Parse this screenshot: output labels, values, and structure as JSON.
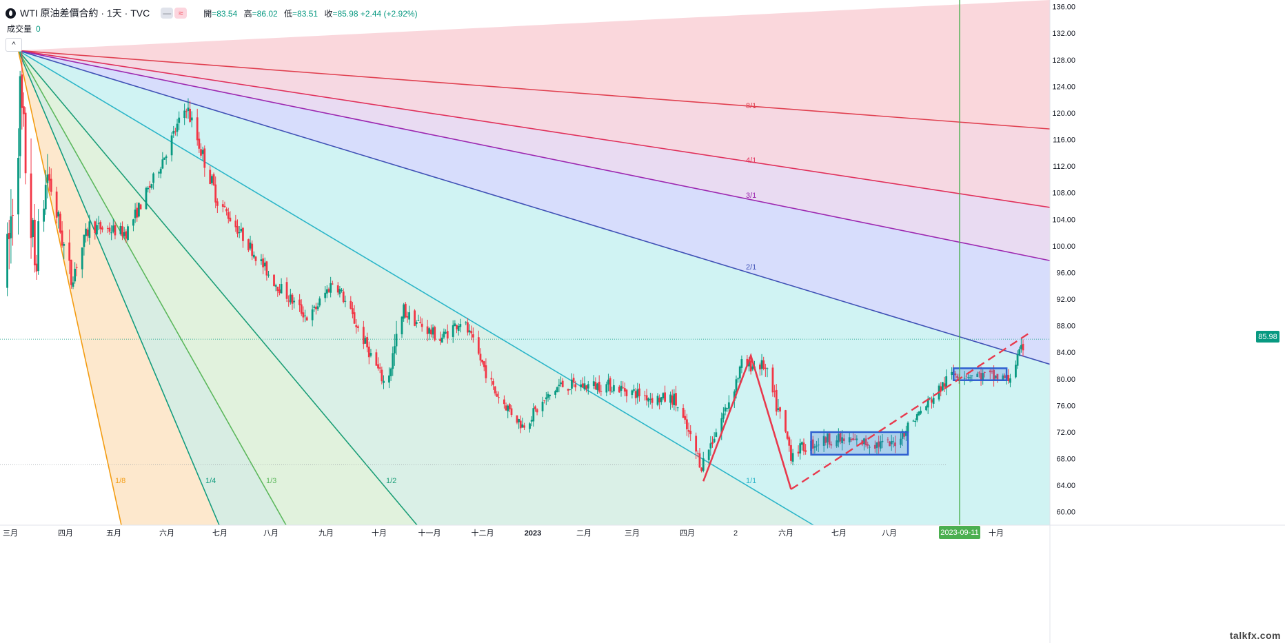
{
  "header": {
    "symbol_title": "WTI 原油差價合約 · 1天 · TVC",
    "badge_1": "—",
    "badge_2": "≈",
    "open_label": "開",
    "open_value": "=83.54",
    "high_label": "高",
    "high_value": "=86.02",
    "low_label": "低",
    "low_value": "=83.51",
    "close_label": "收",
    "close_value": "=85.98",
    "change": "+2.44 (+2.92%)"
  },
  "volume": {
    "label": "成交量",
    "value": "0"
  },
  "collapse_button": "^",
  "price_badge": "85.98",
  "date_badge": "2023-09-11",
  "watermark": "talkfx.com",
  "colors": {
    "up": "#089981",
    "down": "#f23645",
    "current_line": "#4caf50"
  },
  "chart_data": {
    "type": "candlestick",
    "title": "WTI 原油差價合約 · 1天 · TVC",
    "timeframe": "1天",
    "ylim": [
      58,
      137
    ],
    "y_ticks": [
      "60.00",
      "64.00",
      "68.00",
      "72.00",
      "76.00",
      "80.00",
      "84.00",
      "88.00",
      "92.00",
      "96.00",
      "100.00",
      "104.00",
      "108.00",
      "112.00",
      "116.00",
      "120.00",
      "124.00",
      "128.00",
      "132.00",
      "136.00"
    ],
    "x_ticks": [
      "三月",
      "四月",
      "五月",
      "六月",
      "七月",
      "八月",
      "九月",
      "十月",
      "十一月",
      "十二月",
      "2023",
      "二月",
      "三月",
      "四月",
      "2",
      "六月",
      "七月",
      "八月",
      "十月"
    ],
    "last_price": 85.98,
    "reference_price": 67.1,
    "ohlc_last": {
      "open": 83.54,
      "high": 86.02,
      "low": 83.51,
      "close": 85.98,
      "change": 2.44,
      "change_pct": 2.92
    },
    "gann_fan": {
      "origin": {
        "date": "2022-03-07",
        "price": 129.4
      },
      "angles": [
        {
          "label": "8/1",
          "color": "#e04050"
        },
        {
          "label": "4/1",
          "color": "#e0305a"
        },
        {
          "label": "3/1",
          "color": "#9c27b0"
        },
        {
          "label": "2/1",
          "color": "#3f51b5"
        },
        {
          "label": "1/1",
          "color": "#2bb5c8"
        },
        {
          "label": "1/2",
          "color": "#1b9e77"
        },
        {
          "label": "1/3",
          "color": "#5cb85c"
        },
        {
          "label": "1/4",
          "color": "#139c7e"
        },
        {
          "label": "1/8",
          "color": "#f39c12"
        }
      ]
    },
    "annotations": {
      "zigzag": [
        {
          "date": "2023-03-17",
          "price": 64.6
        },
        {
          "date": "2023-04-12",
          "price": 83.5
        },
        {
          "date": "2023-05-04",
          "price": 63.4
        }
      ],
      "boxes": [
        {
          "from": "2023-05-15",
          "to": "2023-07-07",
          "top": 72.0,
          "bottom": 68.6
        },
        {
          "from": "2023-08-01",
          "to": "2023-08-30",
          "top": 81.6,
          "bottom": 79.8
        }
      ],
      "trend_line": [
        {
          "date": "2023-05-04",
          "price": 63.4
        },
        {
          "date": "2023-09-12",
          "price": 87.0
        }
      ],
      "current_date": "2023-09-11"
    },
    "segments": [
      {
        "start": "2022-03-01",
        "days": 3,
        "start_price": 94,
        "end_price": 104
      },
      {
        "start": "2022-03-04",
        "days": 5,
        "start_price": 104,
        "end_price": 122
      },
      {
        "start": "2022-03-09",
        "days": 8,
        "start_price": 122,
        "end_price": 97
      },
      {
        "start": "2022-03-17",
        "days": 7,
        "start_price": 97,
        "end_price": 111
      },
      {
        "start": "2022-03-24",
        "days": 13,
        "start_price": 111,
        "end_price": 95
      },
      {
        "start": "2022-04-06",
        "days": 10,
        "start_price": 95,
        "end_price": 103
      },
      {
        "start": "2022-04-16",
        "days": 20,
        "start_price": 103,
        "end_price": 102
      },
      {
        "start": "2022-05-06",
        "days": 15,
        "start_price": 102,
        "end_price": 110
      },
      {
        "start": "2022-05-21",
        "days": 18,
        "start_price": 110,
        "end_price": 121
      },
      {
        "start": "2022-06-08",
        "days": 17,
        "start_price": 121,
        "end_price": 107
      },
      {
        "start": "2022-06-25",
        "days": 15,
        "start_price": 107,
        "end_price": 101
      },
      {
        "start": "2022-07-10",
        "days": 15,
        "start_price": 101,
        "end_price": 95
      },
      {
        "start": "2022-07-25",
        "days": 20,
        "start_price": 95,
        "end_price": 89
      },
      {
        "start": "2022-08-14",
        "days": 14,
        "start_price": 89,
        "end_price": 95
      },
      {
        "start": "2022-08-28",
        "days": 28,
        "start_price": 95,
        "end_price": 79
      },
      {
        "start": "2022-09-25",
        "days": 10,
        "start_price": 79,
        "end_price": 90
      },
      {
        "start": "2022-10-05",
        "days": 20,
        "start_price": 90,
        "end_price": 86
      },
      {
        "start": "2022-10-25",
        "days": 12,
        "start_price": 86,
        "end_price": 89
      },
      {
        "start": "2022-11-06",
        "days": 18,
        "start_price": 89,
        "end_price": 78
      },
      {
        "start": "2022-11-24",
        "days": 15,
        "start_price": 78,
        "end_price": 73
      },
      {
        "start": "2022-12-09",
        "days": 20,
        "start_price": 73,
        "end_price": 79
      },
      {
        "start": "2022-12-29",
        "days": 28,
        "start_price": 79,
        "end_price": 79
      },
      {
        "start": "2023-01-26",
        "days": 25,
        "start_price": 79,
        "end_price": 77
      },
      {
        "start": "2023-02-20",
        "days": 10,
        "start_price": 77,
        "end_price": 77
      },
      {
        "start": "2023-03-02",
        "days": 15,
        "start_price": 77,
        "end_price": 67
      },
      {
        "start": "2023-03-17",
        "days": 14,
        "start_price": 67,
        "end_price": 76
      },
      {
        "start": "2023-03-31",
        "days": 8,
        "start_price": 76,
        "end_price": 82
      },
      {
        "start": "2023-04-08",
        "days": 12,
        "start_price": 82,
        "end_price": 82
      },
      {
        "start": "2023-04-20",
        "days": 15,
        "start_price": 82,
        "end_price": 69
      },
      {
        "start": "2023-05-05",
        "days": 20,
        "start_price": 69,
        "end_price": 71
      },
      {
        "start": "2023-05-25",
        "days": 35,
        "start_price": 71,
        "end_price": 70
      },
      {
        "start": "2023-06-29",
        "days": 22,
        "start_price": 70,
        "end_price": 77
      },
      {
        "start": "2023-07-21",
        "days": 12,
        "start_price": 77,
        "end_price": 81
      },
      {
        "start": "2023-08-02",
        "days": 30,
        "start_price": 81,
        "end_price": 80
      },
      {
        "start": "2023-09-01",
        "days": 10,
        "start_price": 80,
        "end_price": 86
      }
    ]
  }
}
